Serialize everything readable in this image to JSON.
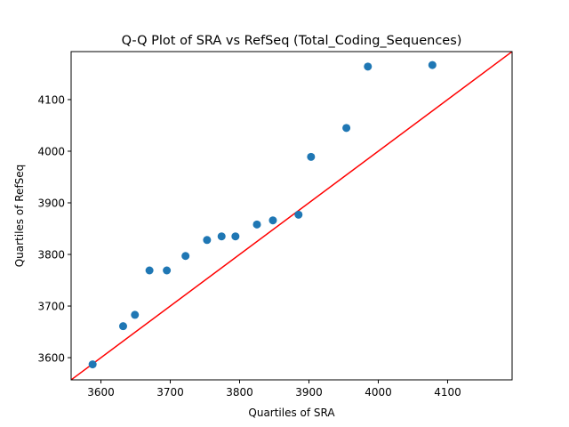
{
  "chart_data": {
    "type": "scatter",
    "title": "Q-Q Plot of SRA vs RefSeq (Total_Coding_Sequences)",
    "xlabel": "Quartiles of SRA",
    "ylabel": "Quartiles of RefSeq",
    "xlim": [
      3557,
      4193
    ],
    "ylim": [
      3557,
      4193
    ],
    "xticks": [
      3600,
      3700,
      3800,
      3900,
      4000,
      4100
    ],
    "yticks": [
      3600,
      3700,
      3800,
      3900,
      4000,
      4100
    ],
    "grid": false,
    "legend": "none",
    "points": [
      {
        "x": 3588,
        "y": 3587
      },
      {
        "x": 3632,
        "y": 3661
      },
      {
        "x": 3649,
        "y": 3683
      },
      {
        "x": 3670,
        "y": 3769
      },
      {
        "x": 3695,
        "y": 3769
      },
      {
        "x": 3722,
        "y": 3797
      },
      {
        "x": 3753,
        "y": 3828
      },
      {
        "x": 3774,
        "y": 3835
      },
      {
        "x": 3794,
        "y": 3835
      },
      {
        "x": 3825,
        "y": 3858
      },
      {
        "x": 3848,
        "y": 3866
      },
      {
        "x": 3885,
        "y": 3877
      },
      {
        "x": 3903,
        "y": 3989
      },
      {
        "x": 3954,
        "y": 4045
      },
      {
        "x": 3985,
        "y": 4164
      },
      {
        "x": 4078,
        "y": 4167
      }
    ],
    "reference_line": {
      "slope": 1,
      "intercept": 0,
      "color": "#ff0000"
    },
    "point_color": "#1f77b4"
  }
}
